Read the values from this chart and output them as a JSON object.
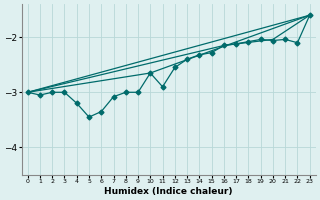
{
  "xlabel": "Humidex (Indice chaleur)",
  "background_color": "#dff0f0",
  "grid_color": "#b8d8d8",
  "line_color": "#006b6b",
  "xlim": [
    -0.5,
    23.5
  ],
  "ylim": [
    -4.5,
    -1.4
  ],
  "yticks": [
    -4,
    -3,
    -2
  ],
  "xticks": [
    0,
    1,
    2,
    3,
    4,
    5,
    6,
    7,
    8,
    9,
    10,
    11,
    12,
    13,
    14,
    15,
    16,
    17,
    18,
    19,
    20,
    21,
    22,
    23
  ],
  "line1_x": [
    0,
    1,
    2,
    3,
    4,
    5,
    6,
    7,
    8,
    9,
    10,
    11,
    12,
    13,
    14,
    15,
    16,
    17,
    18,
    19,
    20,
    21,
    22,
    23
  ],
  "line1_y": [
    -3.0,
    -3.05,
    -3.0,
    -3.0,
    -3.2,
    -3.45,
    -3.35,
    -3.08,
    -3.0,
    -3.0,
    -2.65,
    -2.9,
    -2.55,
    -2.4,
    -2.32,
    -2.28,
    -2.15,
    -2.12,
    -2.08,
    -2.04,
    -2.06,
    -2.04,
    -2.1,
    -1.6
  ],
  "line2_x": [
    0,
    23
  ],
  "line2_y": [
    -3.0,
    -1.6
  ],
  "line3_x": [
    0,
    16,
    20,
    23
  ],
  "line3_y": [
    -3.0,
    -2.15,
    -2.04,
    -1.6
  ],
  "line4_x": [
    0,
    10,
    23
  ],
  "line4_y": [
    -3.0,
    -2.65,
    -1.6
  ]
}
